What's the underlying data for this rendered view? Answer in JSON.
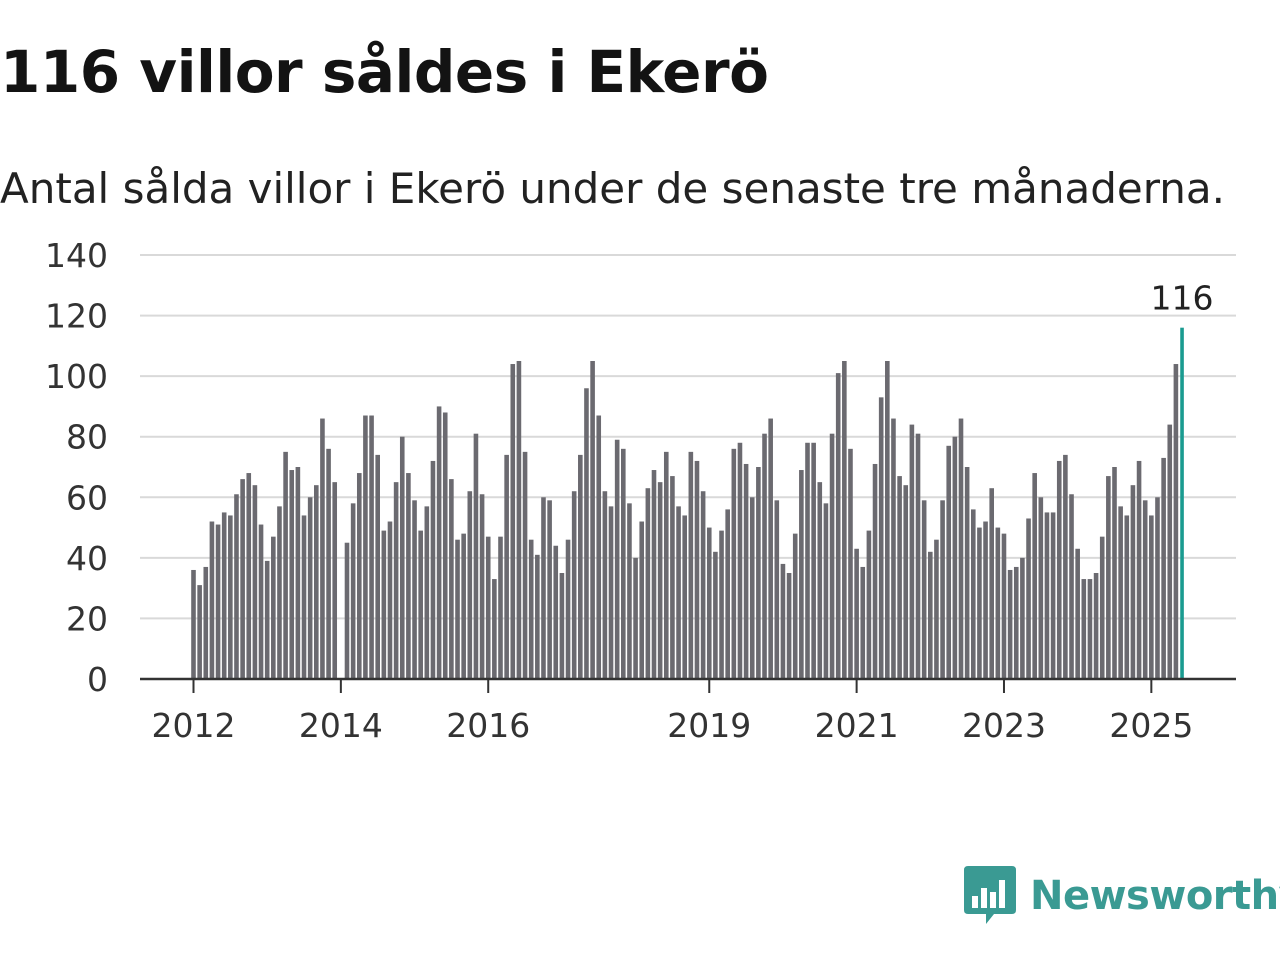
{
  "header": {
    "title": "116 villor såldes i Ekerö",
    "subtitle": "Antal sålda villor i Ekerö under de senaste tre månaderna."
  },
  "brand": {
    "name": "Newsworthy",
    "icon": "newsworthy-bar-chart-icon",
    "color": "#3a9a93"
  },
  "colors": {
    "bar": "#6b6a70",
    "highlight": "#1a9b90",
    "grid": "#d9d9d9",
    "axis": "#333333"
  },
  "chart_data": {
    "type": "bar",
    "start": "2012-01",
    "ylim": [
      0,
      140
    ],
    "yticks": [
      0,
      20,
      40,
      60,
      80,
      100,
      120,
      140
    ],
    "xticks": [
      "2012",
      "2014",
      "2016",
      "2019",
      "2021",
      "2023",
      "2025"
    ],
    "grid": true,
    "highlight_label": "116",
    "values": [
      36,
      31,
      37,
      52,
      51,
      55,
      54,
      61,
      66,
      68,
      64,
      51,
      39,
      47,
      57,
      75,
      69,
      70,
      54,
      60,
      64,
      86,
      76,
      65,
      null,
      45,
      58,
      68,
      87,
      87,
      74,
      49,
      52,
      65,
      80,
      68,
      59,
      49,
      57,
      72,
      90,
      88,
      66,
      46,
      48,
      62,
      81,
      61,
      47,
      33,
      47,
      74,
      104,
      105,
      75,
      46,
      41,
      60,
      59,
      44,
      35,
      46,
      62,
      74,
      96,
      105,
      87,
      62,
      57,
      79,
      76,
      58,
      40,
      52,
      63,
      69,
      65,
      75,
      67,
      57,
      54,
      75,
      72,
      62,
      50,
      42,
      49,
      56,
      76,
      78,
      71,
      60,
      70,
      81,
      86,
      59,
      38,
      35,
      48,
      69,
      78,
      78,
      65,
      58,
      81,
      101,
      105,
      76,
      43,
      37,
      49,
      71,
      93,
      105,
      86,
      67,
      64,
      84,
      81,
      59,
      42,
      46,
      59,
      77,
      80,
      86,
      70,
      56,
      50,
      52,
      63,
      50,
      48,
      36,
      37,
      40,
      53,
      68,
      60,
      55,
      55,
      72,
      74,
      61,
      43,
      33,
      33,
      35,
      47,
      67,
      70,
      57,
      54,
      64,
      72,
      59,
      54,
      60,
      73,
      84,
      104,
      116
    ]
  }
}
